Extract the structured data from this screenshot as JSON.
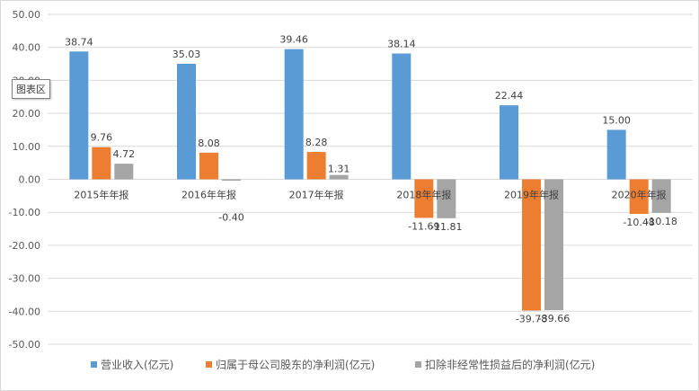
{
  "tooltip": "图表区",
  "chart_data": {
    "type": "bar",
    "categories": [
      "2015年年报",
      "2016年年报",
      "2017年年报",
      "2018年年报",
      "2019年年报",
      "2020年年报"
    ],
    "series": [
      {
        "name": "营业收入(亿元)",
        "color": "#5b9bd5",
        "values": [
          38.74,
          35.03,
          39.46,
          38.14,
          22.44,
          15.0
        ]
      },
      {
        "name": "归属于母公司股东的净利润(亿元)",
        "color": "#ed7d31",
        "values": [
          9.76,
          8.08,
          8.28,
          -11.69,
          -39.78,
          -10.48
        ]
      },
      {
        "name": "扣除非经常性损益后的净利润(亿元)",
        "color": "#a5a5a5",
        "values": [
          4.72,
          -0.4,
          1.31,
          -11.81,
          -39.66,
          -10.18
        ]
      }
    ],
    "ylim": [
      -50,
      50
    ],
    "yticks": [
      "50.00",
      "40.00",
      "30.00",
      "20.00",
      "10.00",
      "0.00",
      "-10.00",
      "-20.00",
      "-30.00",
      "-40.00",
      "-50.00"
    ],
    "grid": true,
    "legend": "bottom"
  }
}
